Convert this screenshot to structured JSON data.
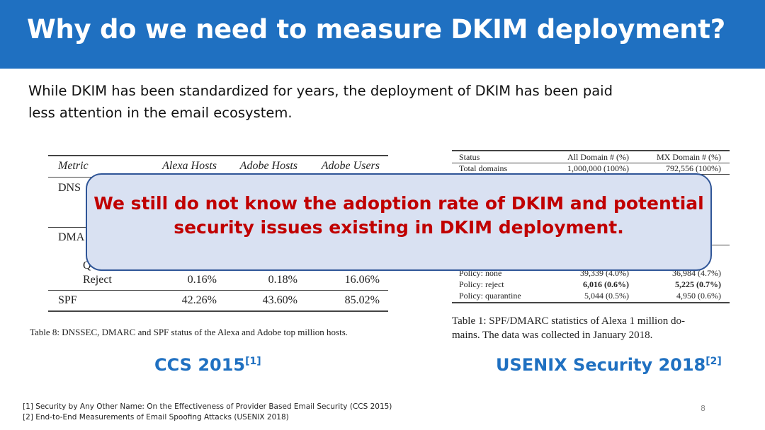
{
  "title": "Why do we need to measure DKIM deployment?",
  "body_lines": [
    "While DKIM has been standardized for years, the deployment of DKIM has been paid",
    "less attention in the email ecosystem."
  ],
  "left_table": {
    "headers": [
      "Metric",
      "Alexa Hosts",
      "Adobe Hosts",
      "Adobe Users"
    ],
    "rows": [
      {
        "label": "DNS",
        "values": [
          "",
          "",
          ""
        ]
      },
      {
        "label": "DMA",
        "values": [
          "",
          "",
          ""
        ]
      },
      {
        "label": "Q",
        "values": [
          "",
          "",
          ""
        ]
      },
      {
        "label": "Reject",
        "values": [
          "0.16%",
          "0.18%",
          "16.06%"
        ]
      },
      {
        "label": "SPF",
        "values": [
          "42.26%",
          "43.60%",
          "85.02%"
        ]
      }
    ],
    "caption": "Table 8: DNSSEC, DMARC and SPF status of the Alexa and Adobe top million hosts."
  },
  "right_table": {
    "headers": [
      "Status",
      "All Domain # (%)",
      "MX Domain # (%)"
    ],
    "rows": [
      {
        "label": "Total domains",
        "all": "1,000,000 (100%)",
        "mx": "792,556 (100%)"
      },
      {
        "label": "Policy: none",
        "all": "39,339 (4.0%)",
        "mx": "36,984 (4.7%)"
      },
      {
        "label": "Policy: reject",
        "all": "6,016 (0.6%)",
        "mx": "5,225 (0.7%)"
      },
      {
        "label": "Policy: quarantine",
        "all": "5,044 (0.5%)",
        "mx": "4,950 (0.6%)"
      }
    ],
    "caption_lines": [
      "Table 1:  SPF/DMARC statistics of Alexa 1 million do-",
      "mains. The data was collected in January 2018."
    ]
  },
  "callout_lines": [
    "We still do not know the adoption rate of DKIM and potential",
    "security issues existing in DKIM deployment."
  ],
  "venues": [
    {
      "name": "CCS 2015",
      "ref": "[1]"
    },
    {
      "name": "USENIX Security 2018",
      "ref": "[2]"
    }
  ],
  "footnotes": [
    "[1] Security by Any Other Name: On the Effectiveness of Provider Based Email Security (CCS 2015)",
    "[2] End-to-End Measurements of Email Spoofing Attacks (USENIX 2018)"
  ],
  "page_number": "8",
  "colors": {
    "header": "#1f70c1",
    "callout_fill": "#d9e1f2",
    "callout_text": "#c00000",
    "venue": "#1f70c1"
  }
}
